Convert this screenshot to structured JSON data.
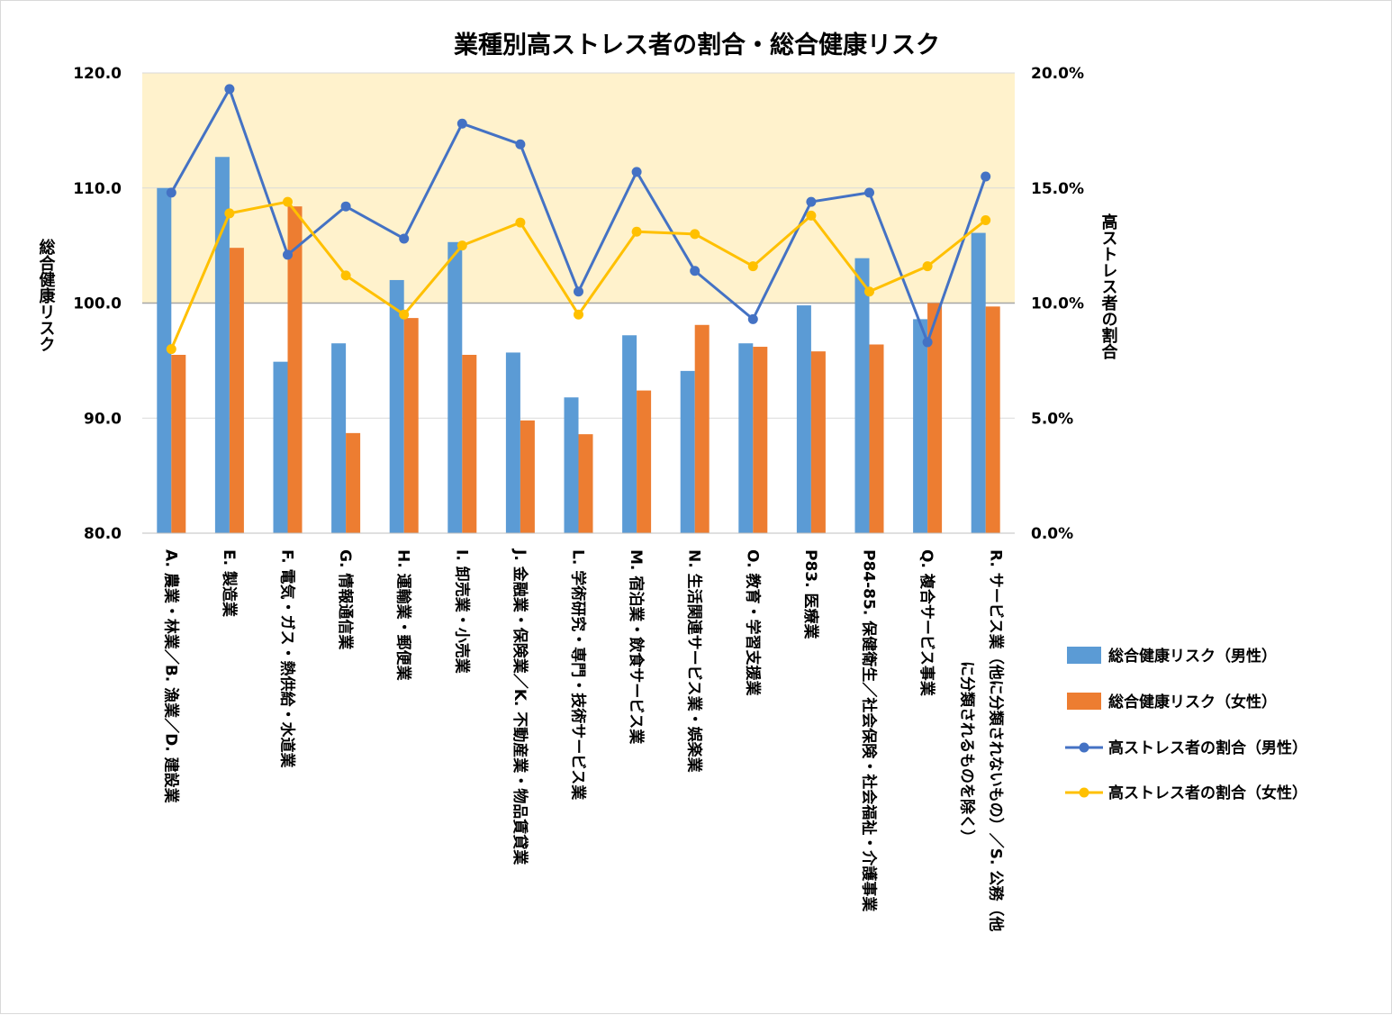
{
  "chart_data": {
    "type": "bar",
    "title": "業種別高ストレス者の割合・総合健康リスク",
    "ylabel": "総合健康リスク",
    "y2label": "高ストレス者の割合",
    "ylim": [
      80,
      120
    ],
    "y2lim": [
      0,
      20
    ],
    "yticks": [
      "80.0",
      "90.0",
      "100.0",
      "110.0",
      "120.0"
    ],
    "y2ticks": [
      "0.0%",
      "5.0%",
      "10.0%",
      "15.0%",
      "20.0%"
    ],
    "categories": [
      "A. 農業・林業／B. 漁業／D. 建設業",
      "E. 製造業",
      "F. 電気・ガス・熱供給・水道業",
      "G. 情報通信業",
      "H. 運輸業・郵便業",
      "I. 卸売業・小売業",
      "J. 金融業・保険業／K. 不動産業・物品賃貸業",
      "L. 学術研究・専門・技術サービス業",
      "M. 宿泊業・飲食サービス業",
      "N. 生活関連サービス業・娯楽業",
      "O. 教育・学習支援業",
      "P83. 医療業",
      "P84-85. 保健衛生／社会保険・社会福祉・介護事業",
      "Q. 複合サービス事業",
      "R. サービス業（他に分類されないもの）／S. 公務（他に分類されるものを除く）"
    ],
    "category_lines": [
      [
        "A. 農業・林業／B. 漁業／D. 建設業"
      ],
      [
        "E. 製造業"
      ],
      [
        "F. 電気・ガス・熱供給・水道業"
      ],
      [
        "G. 情報通信業"
      ],
      [
        "H. 運輸業・郵便業"
      ],
      [
        "I. 卸売業・小売業"
      ],
      [
        "J. 金融業・保険業／K. 不動産業・物品賃貸業"
      ],
      [
        "L. 学術研究・専門・技術サービス業"
      ],
      [
        "M. 宿泊業・飲食サービス業"
      ],
      [
        "N. 生活関連サービス業・娯楽業"
      ],
      [
        "O. 教育・学習支援業"
      ],
      [
        "P83. 医療業"
      ],
      [
        "P84-85. 保健衛生／社会保険・社会福祉・介護事業"
      ],
      [
        "Q. 複合サービス事業"
      ],
      [
        "R. サービス業（他に分類されないもの）／S. 公務（他",
        "に分類されるものを除く）"
      ]
    ],
    "series": [
      {
        "name": "総合健康リスク（男性）",
        "kind": "bar",
        "axis": "left",
        "color": "#5b9bd5",
        "values": [
          110.0,
          112.7,
          94.9,
          96.5,
          102.0,
          105.3,
          95.7,
          91.8,
          97.2,
          94.1,
          96.5,
          99.8,
          103.9,
          98.6,
          106.1
        ]
      },
      {
        "name": "総合健康リスク（女性）",
        "kind": "bar",
        "axis": "left",
        "color": "#ed7d31",
        "values": [
          95.5,
          104.8,
          108.4,
          88.7,
          98.7,
          95.5,
          89.8,
          88.6,
          92.4,
          98.1,
          96.2,
          95.8,
          96.4,
          100.0,
          99.7
        ]
      },
      {
        "name": "高ストレス者の割合（男性）",
        "kind": "line",
        "axis": "right",
        "color": "#4472c4",
        "values": [
          14.8,
          19.3,
          12.1,
          14.2,
          12.8,
          17.8,
          16.9,
          10.5,
          15.7,
          11.4,
          9.3,
          14.4,
          14.8,
          8.3,
          15.5
        ]
      },
      {
        "name": "高ストレス者の割合（女性）",
        "kind": "line",
        "axis": "right",
        "color": "#ffc000",
        "values": [
          8.0,
          13.9,
          14.4,
          11.2,
          9.5,
          12.5,
          13.5,
          9.5,
          13.1,
          13.0,
          11.6,
          13.8,
          10.5,
          11.6,
          13.6
        ]
      }
    ],
    "reference_line": 100.0,
    "highlight_band": {
      "from": 100,
      "to": 120,
      "color": "#fff2cc"
    },
    "grid": true,
    "legend_position": "right"
  }
}
